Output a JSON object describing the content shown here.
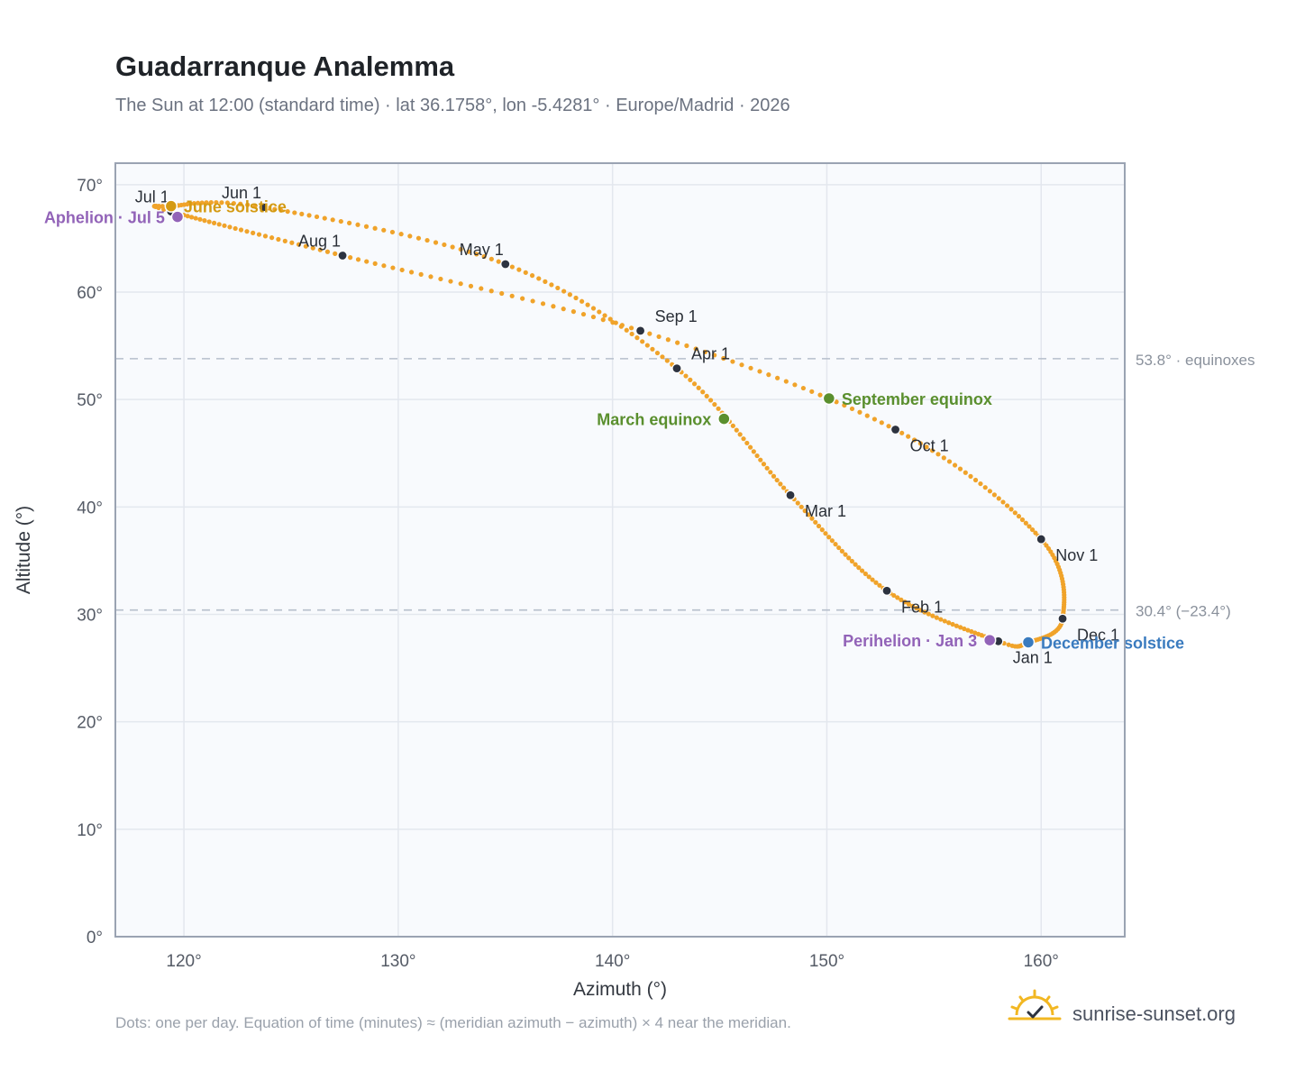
{
  "page": {
    "title": "Guadarranque Analemma",
    "subtitle": "The Sun at 12:00 (standard time) · lat 36.1758°, lon -5.4281° · Europe/Madrid · 2026",
    "footnote": "Dots: one per day. Equation of time (minutes) ≈ (meridian azimuth − azimuth) × 4 near the meridian.",
    "brand": "sunrise-sunset.org",
    "brand_icon": "sun-horizon-icon"
  },
  "colors": {
    "path": "#f0a32a",
    "month_dot": "#2d3340",
    "solstice_june": "#d49a12",
    "solstice_december": "#3a7bbf",
    "equinox": "#5a8f2e",
    "apsis": "#9263b8",
    "grid": "#e3e7ee",
    "plot_bg": "#f8fafd",
    "frame": "#9aa3b2",
    "ref_line": "#b6bfcc"
  },
  "chart_data": {
    "type": "scatter",
    "xlabel": "Azimuth (°)",
    "ylabel": "Altitude (°)",
    "xlim": [
      116.8,
      163.9
    ],
    "ylim": [
      0,
      72
    ],
    "xticks": [
      {
        "value": 120,
        "label": "120°"
      },
      {
        "value": 130,
        "label": "130°"
      },
      {
        "value": 140,
        "label": "140°"
      },
      {
        "value": 150,
        "label": "150°"
      },
      {
        "value": 160,
        "label": "160°"
      }
    ],
    "yticks": [
      {
        "value": 0,
        "label": "0°"
      },
      {
        "value": 10,
        "label": "10°"
      },
      {
        "value": 20,
        "label": "20°"
      },
      {
        "value": 30,
        "label": "30°"
      },
      {
        "value": 40,
        "label": "40°"
      },
      {
        "value": 50,
        "label": "50°"
      },
      {
        "value": 60,
        "label": "60°"
      },
      {
        "value": 70,
        "label": "70°"
      }
    ],
    "grid": true,
    "reference_lines": [
      {
        "value": 53.8,
        "label": "53.8° · equinoxes"
      },
      {
        "value": 30.4,
        "label": "30.4° (−23.4°)"
      }
    ],
    "path_anchors": [
      {
        "date": "2026-01-01",
        "az": 158.0,
        "alt": 27.5
      },
      {
        "date": "2026-02-01",
        "az": 152.8,
        "alt": 32.2
      },
      {
        "date": "2026-03-01",
        "az": 148.3,
        "alt": 41.1
      },
      {
        "date": "2026-04-01",
        "az": 143.0,
        "alt": 52.9
      },
      {
        "date": "2026-05-01",
        "az": 135.0,
        "alt": 62.6
      },
      {
        "date": "2026-06-01",
        "az": 123.7,
        "alt": 67.9
      },
      {
        "date": "2026-06-21",
        "az": 119.4,
        "alt": 68.0
      },
      {
        "date": "2026-07-01",
        "az": 119.4,
        "alt": 67.5
      },
      {
        "date": "2026-08-01",
        "az": 127.4,
        "alt": 63.4
      },
      {
        "date": "2026-09-01",
        "az": 141.3,
        "alt": 56.4
      },
      {
        "date": "2026-10-01",
        "az": 153.2,
        "alt": 47.2
      },
      {
        "date": "2026-11-01",
        "az": 160.0,
        "alt": 37.0
      },
      {
        "date": "2026-12-01",
        "az": 161.0,
        "alt": 29.6
      },
      {
        "date": "2026-12-21",
        "az": 159.4,
        "alt": 27.4
      },
      {
        "date": "2027-01-01",
        "az": 158.0,
        "alt": 27.5
      }
    ],
    "month_markers": [
      {
        "label": "Jan 1",
        "az": 158.0,
        "alt": 27.5,
        "label_pos": "below-right"
      },
      {
        "label": "Feb 1",
        "az": 152.8,
        "alt": 32.2,
        "label_pos": "below-right"
      },
      {
        "label": "Mar 1",
        "az": 148.3,
        "alt": 41.1,
        "label_pos": "below-right"
      },
      {
        "label": "Apr 1",
        "az": 143.0,
        "alt": 52.9,
        "label_pos": "above-right"
      },
      {
        "label": "May 1",
        "az": 135.0,
        "alt": 62.6,
        "label_pos": "above-left"
      },
      {
        "label": "Jun 1",
        "az": 123.7,
        "alt": 67.9,
        "label_pos": "above-left"
      },
      {
        "label": "Jul 1",
        "az": 119.4,
        "alt": 67.5,
        "label_pos": "above-left"
      },
      {
        "label": "Aug 1",
        "az": 127.4,
        "alt": 63.4,
        "label_pos": "above-left"
      },
      {
        "label": "Sep 1",
        "az": 141.3,
        "alt": 56.4,
        "label_pos": "above-right"
      },
      {
        "label": "Oct 1",
        "az": 153.2,
        "alt": 47.2,
        "label_pos": "below-right"
      },
      {
        "label": "Nov 1",
        "az": 160.0,
        "alt": 37.0,
        "label_pos": "below-right"
      },
      {
        "label": "Dec 1",
        "az": 161.0,
        "alt": 29.6,
        "label_pos": "below-right"
      }
    ],
    "events": [
      {
        "label": "June solstice",
        "az": 119.4,
        "alt": 68.0,
        "color": "#d49a12",
        "label_side": "right"
      },
      {
        "label": "Aphelion · Jul 5",
        "az": 119.7,
        "alt": 67.0,
        "color": "#9263b8",
        "label_side": "left"
      },
      {
        "label": "March equinox",
        "az": 145.2,
        "alt": 48.2,
        "color": "#5a8f2e",
        "label_side": "left"
      },
      {
        "label": "September equinox",
        "az": 150.1,
        "alt": 50.1,
        "color": "#5a8f2e",
        "label_side": "right"
      },
      {
        "label": "Perihelion · Jan 3",
        "az": 157.6,
        "alt": 27.6,
        "color": "#9263b8",
        "label_side": "left"
      },
      {
        "label": "December solstice",
        "az": 159.4,
        "alt": 27.4,
        "color": "#3a7bbf",
        "label_side": "right"
      }
    ]
  }
}
